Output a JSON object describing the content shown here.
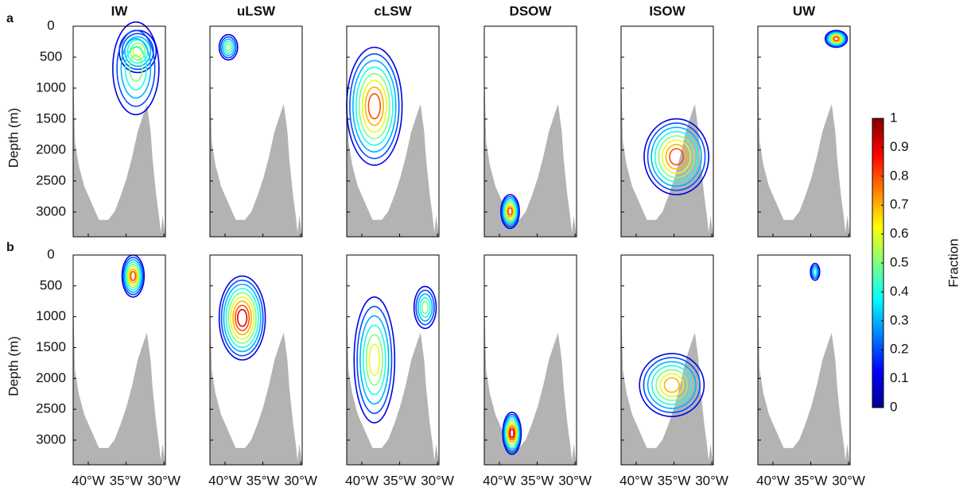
{
  "chart_data": {
    "type": "contour",
    "panel_labels": [
      "a",
      "b"
    ],
    "titles": [
      "IW",
      "uLSW",
      "cLSW",
      "DSOW",
      "ISOW",
      "UW"
    ],
    "ylabel": "Depth (m)",
    "ylim": [
      0,
      3400
    ],
    "yticks": [
      0,
      500,
      1000,
      1500,
      2000,
      2500,
      3000
    ],
    "xlim": [
      -42,
      -29.8
    ],
    "xticks": [
      {
        "value": -40,
        "label": "40°W"
      },
      {
        "value": -35,
        "label": "35°W"
      },
      {
        "value": -30,
        "label": "30°W"
      }
    ],
    "colorbar": {
      "label": "Fraction",
      "clim": [
        0,
        1
      ],
      "ticks": [
        0,
        0.1,
        0.2,
        0.3,
        0.4,
        0.5,
        0.6,
        0.7,
        0.8,
        0.9,
        1
      ]
    }
  }
}
